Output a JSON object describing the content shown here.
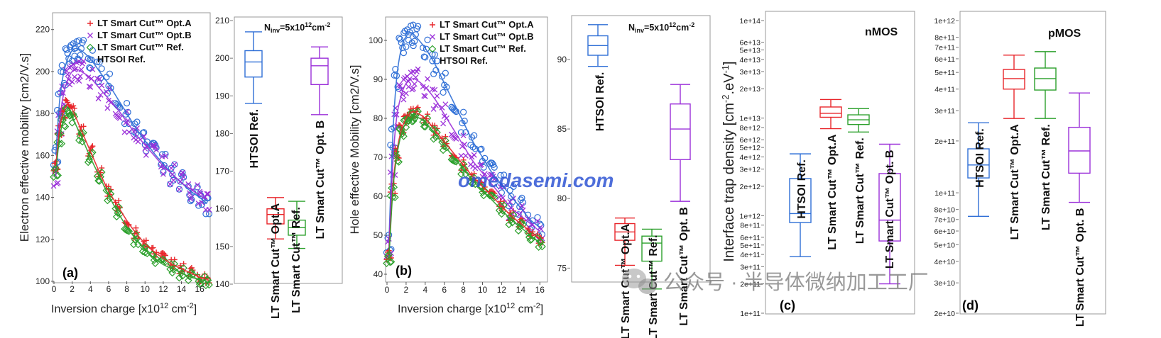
{
  "chart_data": [
    {
      "panel": "(a)",
      "type": "scatter",
      "xlabel_main": "Inversion charge [x10",
      "xlabel_exp": "12",
      "xlabel_unit": " cm",
      "xlabel_unit_exp": "-2",
      "xlabel_close": "]",
      "ylabel": "Electron effective mobility [cm2/V.s]",
      "xlim": [
        0,
        17
      ],
      "ylim": [
        100,
        228
      ],
      "xticks": [
        0,
        2,
        4,
        6,
        8,
        10,
        12,
        14,
        16
      ],
      "yticks": [
        100,
        120,
        140,
        160,
        180,
        200,
        220
      ],
      "series": [
        {
          "name": "LT Smart Cut™ Opt.A",
          "marker": "+",
          "color": "#e8262b",
          "x": [
            0.2,
            0.6,
            1,
            1.5,
            2,
            3,
            4,
            5,
            6,
            7,
            8,
            9,
            10,
            11,
            12,
            13,
            14,
            15,
            16,
            16.8
          ],
          "y": [
            155,
            172,
            180,
            184,
            182,
            172,
            162,
            152,
            143,
            136,
            129,
            123,
            118,
            114,
            111,
            108,
            106,
            104,
            102,
            101
          ]
        },
        {
          "name": "LT Smart Cut™ Opt.B",
          "marker": "x",
          "color": "#9b30d9",
          "x": [
            0.2,
            0.6,
            1,
            1.5,
            2,
            2.5,
            3,
            4,
            5,
            6,
            7,
            8,
            9,
            10,
            11,
            12,
            13,
            14,
            15,
            16,
            16.8
          ],
          "y": [
            150,
            175,
            188,
            196,
            200,
            201,
            200,
            197,
            192,
            187,
            182,
            176,
            170,
            165,
            160,
            155,
            151,
            147,
            144,
            141,
            139
          ]
        },
        {
          "name": "LT Smart Cut™ Ref.",
          "marker": "diamond",
          "color": "#2ca02c",
          "x": [
            0.2,
            0.6,
            1,
            1.5,
            2,
            3,
            4,
            5,
            6,
            7,
            8,
            9,
            10,
            11,
            12,
            13,
            14,
            15,
            16,
            16.8
          ],
          "y": [
            152,
            168,
            176,
            180,
            178,
            169,
            159,
            150,
            141,
            133,
            126,
            120,
            115,
            111,
            108,
            106,
            104,
            102,
            101,
            100
          ]
        },
        {
          "name": "HTSOI Ref.",
          "marker": "circle",
          "color": "#2f6fd6",
          "x": [
            0.2,
            0.6,
            1,
            1.5,
            2,
            2.5,
            3,
            4,
            5,
            6,
            7,
            8,
            9,
            10,
            11,
            12,
            13,
            14,
            15,
            16,
            16.8
          ],
          "y": [
            160,
            185,
            198,
            206,
            210,
            211,
            210,
            206,
            200,
            194,
            187,
            180,
            173,
            167,
            161,
            156,
            151,
            147,
            143,
            140,
            137
          ]
        }
      ],
      "legend_position": "top-right"
    },
    {
      "panel": "a-box",
      "type": "box",
      "annotation_main": "N",
      "annotation_sub": "inv",
      "annotation_rest": "=5x10",
      "annotation_exp": "12",
      "annotation_unit": "cm",
      "annotation_unit_exp": "-2",
      "ylim": [
        140,
        210
      ],
      "yticks": [
        140,
        150,
        160,
        170,
        180,
        190,
        200,
        210
      ],
      "boxes": [
        {
          "label": "HTSOI Ref.",
          "color": "#2f6fd6",
          "min": 188,
          "q1": 195,
          "median": 199,
          "q3": 202,
          "max": 207
        },
        {
          "label": "LT Smart Cut™ Opt.A",
          "color": "#e8262b",
          "min": 152,
          "q1": 156,
          "median": 158.5,
          "q3": 160,
          "max": 163
        },
        {
          "label": "LT Smart Cut™ Ref.",
          "color": "#2ca02c",
          "min": 149.5,
          "q1": 153,
          "median": 155,
          "q3": 157,
          "max": 162
        },
        {
          "label": "LT Smart Cut™ Opt. B",
          "color": "#9b30d9",
          "min": 185,
          "q1": 193,
          "median": 198,
          "q3": 200,
          "max": 203
        }
      ]
    },
    {
      "panel": "(b)",
      "type": "scatter",
      "xlabel_main": "Inversion charge [x10",
      "xlabel_exp": "12",
      "xlabel_unit": " cm",
      "xlabel_unit_exp": "-2",
      "xlabel_close": "]",
      "ylabel": "Hole effective Mobility [cm2/V.s]",
      "xlim": [
        0,
        16.8
      ],
      "ylim": [
        38,
        106
      ],
      "xticks": [
        0,
        2,
        4,
        6,
        8,
        10,
        12,
        14,
        16
      ],
      "yticks": [
        40,
        50,
        60,
        70,
        80,
        90,
        100
      ],
      "series": [
        {
          "name": "LT Smart Cut™ Opt.A",
          "marker": "+",
          "color": "#e8262b",
          "x": [
            0.2,
            0.6,
            1,
            1.5,
            2,
            2.5,
            3,
            4,
            5,
            6,
            7,
            8,
            9,
            10,
            11,
            12,
            13,
            14,
            15,
            16
          ],
          "y": [
            45,
            62,
            71,
            77,
            80,
            81.5,
            81.5,
            80,
            77,
            74,
            71,
            68,
            65,
            62.5,
            60,
            57.5,
            55,
            53,
            51,
            49
          ]
        },
        {
          "name": "LT Smart Cut™ Opt.B",
          "marker": "x",
          "color": "#9b30d9",
          "x": [
            0.2,
            0.6,
            1,
            1.5,
            2,
            2.5,
            3,
            4,
            5,
            6,
            7,
            8,
            9,
            10,
            11,
            12,
            13,
            14,
            15,
            16
          ],
          "y": [
            47,
            68,
            80,
            86,
            89,
            90,
            90,
            88,
            85,
            81,
            77,
            73,
            69,
            66,
            63,
            60,
            57,
            55,
            53,
            51
          ]
        },
        {
          "name": "LT Smart Cut™ Ref.",
          "marker": "diamond",
          "color": "#2ca02c",
          "x": [
            0.2,
            0.6,
            1,
            1.5,
            2,
            2.5,
            3,
            4,
            5,
            6,
            7,
            8,
            9,
            10,
            11,
            12,
            13,
            14,
            15,
            16
          ],
          "y": [
            44,
            61,
            70,
            76,
            79,
            80.5,
            80.5,
            79,
            76,
            73,
            70,
            67,
            64,
            61.5,
            59,
            56.5,
            54,
            52,
            50,
            48
          ]
        },
        {
          "name": "HTSOI Ref.",
          "marker": "circle",
          "color": "#2f6fd6",
          "x": [
            0.2,
            0.6,
            1,
            1.5,
            2,
            2.5,
            3,
            4,
            5,
            6,
            7,
            8,
            9,
            10,
            11,
            12,
            13,
            14,
            15,
            16
          ],
          "y": [
            48,
            75,
            90,
            98,
            101,
            102,
            101,
            98,
            94,
            89,
            84,
            79,
            74,
            70,
            66,
            63,
            60,
            57,
            54,
            52
          ]
        }
      ],
      "legend_position": "top-right"
    },
    {
      "panel": "b-box",
      "type": "box",
      "annotation_main": "N",
      "annotation_sub": "inv",
      "annotation_rest": "=5x10",
      "annotation_exp": "12",
      "annotation_unit": "cm",
      "annotation_unit_exp": "-2",
      "ylim": [
        74,
        93
      ],
      "yticks": [
        75,
        80,
        85,
        90
      ],
      "boxes": [
        {
          "label": "HTSOI Ref.",
          "color": "#2f6fd6",
          "min": 89.5,
          "q1": 90.3,
          "median": 91,
          "q3": 91.7,
          "max": 92.5
        },
        {
          "label": "LT Smart Cut™ Opt.A",
          "color": "#e8262b",
          "min": 75.2,
          "q1": 77,
          "median": 77.6,
          "q3": 78.2,
          "max": 78.6
        },
        {
          "label": "LT Smart Cut™ Ref.",
          "color": "#2ca02c",
          "min": 73.5,
          "q1": 75.5,
          "median": 76.8,
          "q3": 77.3,
          "max": 77.8
        },
        {
          "label": "LT Smart Cut™ Opt. B",
          "color": "#9b30d9",
          "min": 79.8,
          "q1": 82.8,
          "median": 85,
          "q3": 86.8,
          "max": 88.2
        }
      ]
    },
    {
      "panel": "(c)",
      "type": "box",
      "scale": "log",
      "title": "nMOS",
      "ylabel_main": "Interface trap density [cm",
      "ylabel_exp": "-2",
      "ylabel_rest": ".eV",
      "ylabel_exp2": "-1",
      "ylabel_close": "]",
      "ylim": [
        100000000000.0,
        100000000000000.0
      ],
      "yticks": [
        "1e+11",
        "2e+11",
        "3e+11",
        "4e+11",
        "5e+11",
        "6e+11",
        "8e+11",
        "1e+12",
        "2e+12",
        "3e+12",
        "4e+12",
        "5e+12",
        "6e+12",
        "8e+12",
        "1e+13",
        "2e+13",
        "3e+13",
        "4e+13",
        "5e+13",
        "6e+13",
        "1e+14"
      ],
      "boxes": [
        {
          "label": "HTSOI Ref.",
          "color": "#2f6fd6",
          "min": 380000000000.0,
          "q1": 850000000000.0,
          "median": 1050000000000.0,
          "q3": 2400000000000.0,
          "max": 4300000000000.0
        },
        {
          "label": "LT Smart Cut™ Opt.A",
          "color": "#e8262b",
          "min": 7800000000000.0,
          "q1": 10200000000000.0,
          "median": 11200000000000.0,
          "q3": 13000000000000.0,
          "max": 15500000000000.0
        },
        {
          "label": "LT Smart Cut™ Ref.",
          "color": "#2ca02c",
          "min": 7200000000000.0,
          "q1": 8600000000000.0,
          "median": 9600000000000.0,
          "q3": 10800000000000.0,
          "max": 12500000000000.0
        },
        {
          "label": "LT Smart Cut™ Opt. B",
          "color": "#9b30d9",
          "min": 200000000000.0,
          "q1": 550000000000.0,
          "median": 900000000000.0,
          "q3": 2700000000000.0,
          "max": 5400000000000.0
        }
      ]
    },
    {
      "panel": "(d)",
      "type": "box",
      "scale": "log",
      "title": "pMOS",
      "ylim": [
        20000000000.0,
        1000000000000.0
      ],
      "yticks": [
        "2e+10",
        "3e+10",
        "4e+10",
        "5e+10",
        "6e+10",
        "7e+10",
        "8e+10",
        "1e+11",
        "2e+11",
        "3e+11",
        "4e+11",
        "5e+11",
        "6e+11",
        "7e+11",
        "8e+11",
        "1e+12"
      ],
      "boxes": [
        {
          "label": "HTSOI Ref.",
          "color": "#2f6fd6",
          "min": 73000000000.0,
          "q1": 122000000000.0,
          "median": 145000000000.0,
          "q3": 180000000000.0,
          "max": 255000000000.0
        },
        {
          "label": "LT Smart Cut™ Opt.A",
          "color": "#e8262b",
          "min": 270000000000.0,
          "q1": 400000000000.0,
          "median": 460000000000.0,
          "q3": 520000000000.0,
          "max": 630000000000.0
        },
        {
          "label": "LT Smart Cut™ Ref.",
          "color": "#2ca02c",
          "min": 270000000000.0,
          "q1": 395000000000.0,
          "median": 460000000000.0,
          "q3": 530000000000.0,
          "max": 660000000000.0
        },
        {
          "label": "LT Smart Cut™ Opt. B",
          "color": "#9b30d9",
          "min": 88000000000.0,
          "q1": 130000000000.0,
          "median": 175000000000.0,
          "q3": 240000000000.0,
          "max": 380000000000.0
        }
      ]
    }
  ],
  "watermark_text": "omedasemi.com",
  "wechat_text": "公众号 · 半导体微纳加工工厂"
}
